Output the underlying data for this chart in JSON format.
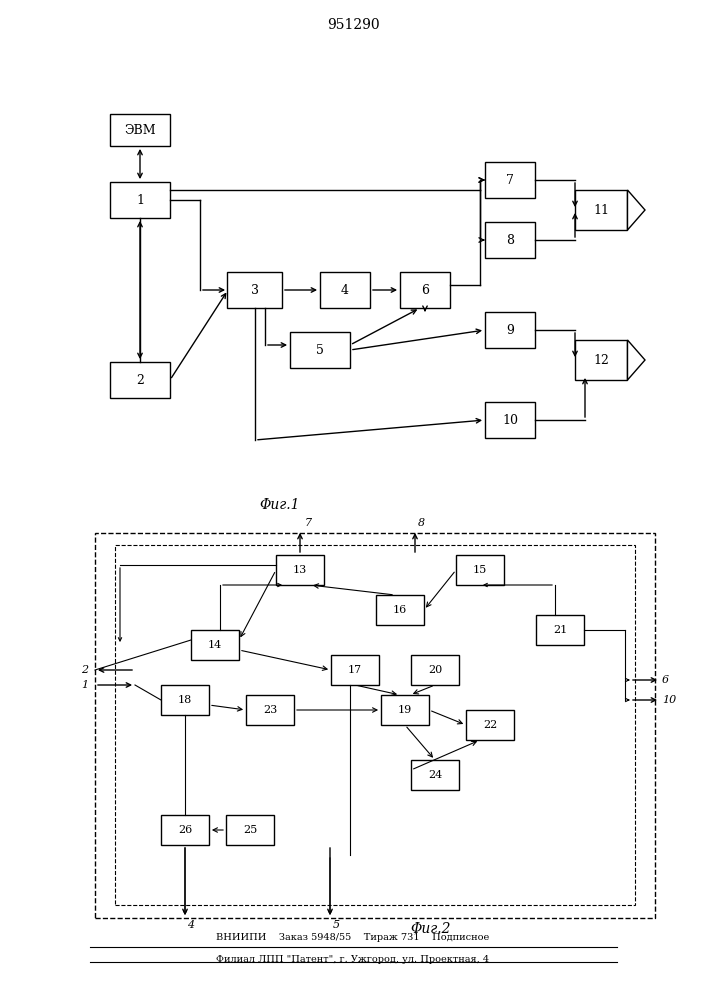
{
  "title": "951290",
  "fig1_caption": "Φиг.1",
  "fig2_caption": "Φиг.2",
  "footer_line1": "ВНИИПИ    Заказ 5948/55    Тираж 731    Подписное",
  "footer_line2": "Филиал ЛПП \"Патент\", г. Ужгород, ул. Проектная, 4",
  "bg_color": "#ffffff",
  "line_color": "#000000"
}
